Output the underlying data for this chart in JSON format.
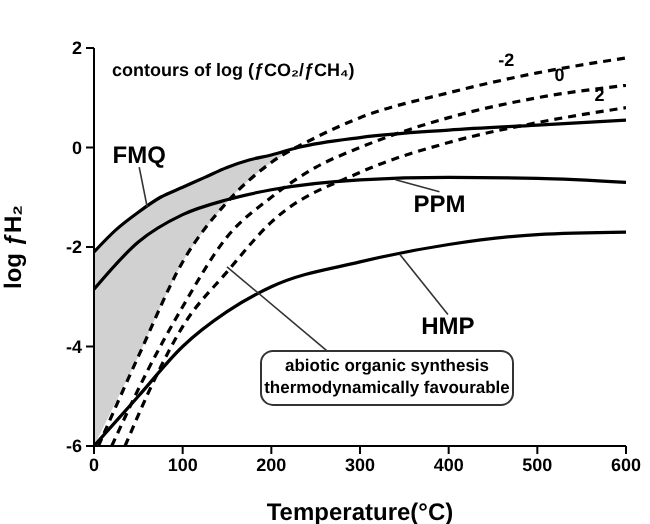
{
  "chart_data": {
    "type": "line",
    "xlabel": "Temperature(°C)",
    "ylabel": "log ƒH₂",
    "xlim": [
      0,
      600
    ],
    "xticks": [
      0,
      100,
      200,
      300,
      400,
      500,
      600
    ],
    "ylim": [
      -6,
      2
    ],
    "yticks": [
      -6,
      -4,
      -2,
      0,
      2
    ],
    "marker": "none",
    "series": [
      {
        "color": "#000000",
        "line_style": "solid",
        "x": [
          0,
          25,
          50,
          75,
          100,
          125,
          150,
          175,
          200,
          230,
          300,
          400,
          500,
          600
        ],
        "values": [
          -2.1,
          -1.65,
          -1.3,
          -1.0,
          -0.8,
          -0.6,
          -0.4,
          -0.25,
          -0.15,
          0.0,
          0.2,
          0.35,
          0.45,
          0.55
        ],
        "lower": [
          -6,
          -5.1,
          -4.2,
          -3.2,
          -2.3,
          -1.65,
          -1.1,
          -0.65,
          -0.3,
          0.0,
          null,
          null,
          null,
          null
        ],
        "upper": [
          -2.1,
          -1.65,
          -1.3,
          -1.0,
          -0.8,
          -0.6,
          -0.4,
          -0.25,
          -0.15,
          0.0,
          null,
          null,
          null,
          null
        ]
      },
      {
        "color": "#000000",
        "line_style": "solid",
        "x": [
          0,
          50,
          100,
          150,
          200,
          300,
          400,
          500,
          600
        ],
        "values": [
          -2.85,
          -1.9,
          -1.35,
          -1.05,
          -0.85,
          -0.65,
          -0.6,
          -0.62,
          -0.7
        ]
      },
      {
        "color": "#000000",
        "line_style": "solid",
        "x": [
          0,
          50,
          100,
          150,
          200,
          300,
          400,
          500,
          600
        ],
        "values": [
          -6,
          -5,
          -4,
          -3.3,
          -2.8,
          -2.3,
          -1.95,
          -1.75,
          -1.7
        ]
      },
      {
        "color": "#000000",
        "line_style": "dashed",
        "x": [
          5,
          50,
          100,
          150,
          200,
          250,
          300,
          400,
          500,
          600
        ],
        "values": [
          -6,
          -4.2,
          -2.3,
          -1.1,
          -0.3,
          0.2,
          0.6,
          1.1,
          1.5,
          1.8
        ]
      },
      {
        "color": "#000000",
        "line_style": "dashed",
        "x": [
          20,
          60,
          100,
          150,
          200,
          250,
          300,
          400,
          500,
          600
        ],
        "values": [
          -6,
          -4.5,
          -3.2,
          -1.8,
          -1.0,
          -0.4,
          0,
          0.6,
          1.0,
          1.25
        ]
      },
      {
        "color": "#000000",
        "line_style": "dashed",
        "x": [
          35,
          70,
          100,
          150,
          200,
          300,
          400,
          500,
          600
        ],
        "values": [
          -6,
          -4.6,
          -3.6,
          -2.5,
          -1.5,
          -0.5,
          0.1,
          0.5,
          0.8
        ]
      }
    ],
    "annotations": [
      "contours of log (ƒCO₂/ƒCH₄)",
      {
        "text": "FMQ",
        "x": 60,
        "y": -1.2
      },
      {
        "text": "PPM",
        "x": 340,
        "y": -0.65
      },
      {
        "text": "HMP",
        "x": 345,
        "y": -2.15
      },
      {
        "text": "abiotic organic synthesis\nthermodynamically favourable",
        "x": 150,
        "y": -2.4
      },
      {
        "text": "-2",
        "x": 465,
        "y": 1.4
      },
      {
        "text": "0",
        "x": 525,
        "y": 1.1
      },
      {
        "text": "2",
        "x": 570,
        "y": 0.7
      }
    ]
  }
}
